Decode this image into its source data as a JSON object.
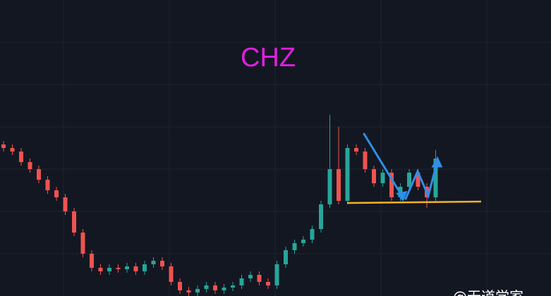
{
  "chart_data": {
    "type": "candlestick",
    "title": "CHZ",
    "watermark": "@无道学家",
    "up_color": "#26a69a",
    "down_color": "#ef5350",
    "ylim": [
      0,
      420
    ],
    "open": [
      215,
      210,
      205,
      190,
      180,
      165,
      150,
      140,
      120,
      90,
      60,
      40,
      35,
      40,
      38,
      42,
      35,
      45,
      50,
      42,
      20,
      8,
      5,
      10,
      15,
      8,
      12,
      15,
      25,
      30,
      20,
      15,
      45,
      65,
      75,
      80,
      95,
      130,
      180,
      135,
      210,
      205,
      180,
      160,
      175,
      140,
      155,
      175,
      155,
      140
    ],
    "high": [
      220,
      215,
      210,
      195,
      185,
      170,
      155,
      145,
      125,
      95,
      65,
      45,
      45,
      45,
      47,
      47,
      50,
      55,
      55,
      47,
      25,
      13,
      15,
      20,
      20,
      17,
      20,
      30,
      35,
      35,
      25,
      50,
      70,
      80,
      85,
      100,
      135,
      257,
      240,
      215,
      215,
      210,
      185,
      180,
      180,
      160,
      180,
      180,
      160,
      207
    ],
    "low": [
      205,
      200,
      185,
      175,
      160,
      145,
      135,
      115,
      85,
      55,
      35,
      30,
      30,
      33,
      33,
      30,
      30,
      40,
      37,
      15,
      3,
      0,
      0,
      5,
      3,
      3,
      7,
      10,
      20,
      15,
      10,
      10,
      40,
      60,
      70,
      75,
      90,
      125,
      130,
      130,
      200,
      175,
      155,
      155,
      135,
      135,
      150,
      150,
      125,
      135
    ],
    "close": [
      210,
      205,
      190,
      180,
      165,
      150,
      140,
      120,
      90,
      60,
      40,
      35,
      40,
      38,
      42,
      35,
      45,
      50,
      42,
      20,
      8,
      5,
      10,
      15,
      8,
      12,
      15,
      25,
      30,
      20,
      15,
      45,
      65,
      75,
      80,
      95,
      130,
      180,
      135,
      210,
      205,
      180,
      160,
      175,
      140,
      155,
      175,
      155,
      140,
      195
    ]
  }
}
